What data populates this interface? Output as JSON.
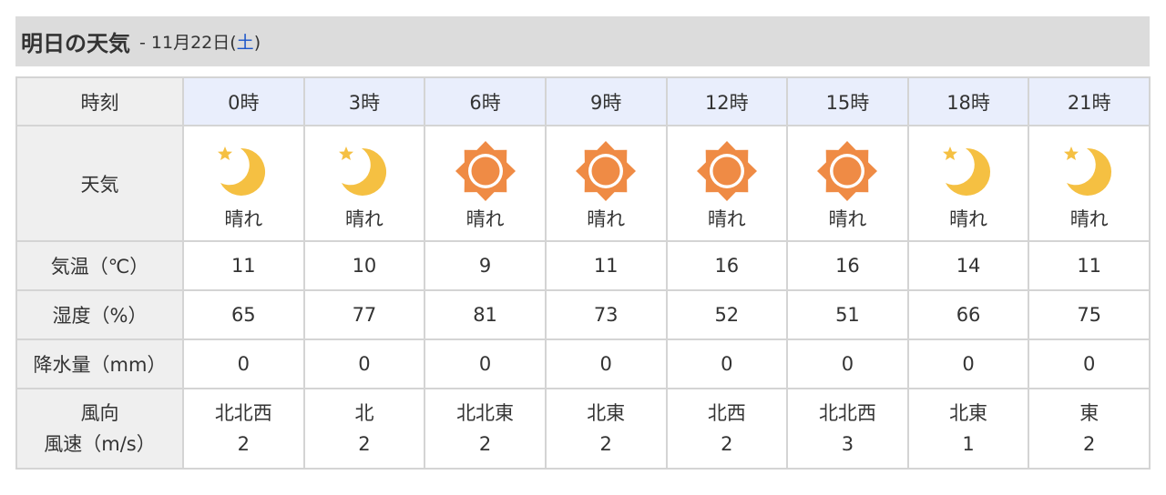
{
  "header": {
    "title": "明日の天気",
    "date_prefix": "- 11月22日(",
    "weekday": "土",
    "date_suffix": ")",
    "weekday_color": "#1a55c9"
  },
  "labels": {
    "time": "時刻",
    "weather": "天気",
    "temp": "気温（℃）",
    "humidity": "湿度（%）",
    "precip": "降水量（mm）",
    "wind_dir": "風向",
    "wind_speed": "風速（m/s）"
  },
  "hours": [
    {
      "time": "0時",
      "icon": "moon-star-icon",
      "weather": "晴れ",
      "temp": "11",
      "humidity": "65",
      "precip": "0",
      "wind_dir": "北北西",
      "wind_speed": "2"
    },
    {
      "time": "3時",
      "icon": "moon-star-icon",
      "weather": "晴れ",
      "temp": "10",
      "humidity": "77",
      "precip": "0",
      "wind_dir": "北",
      "wind_speed": "2"
    },
    {
      "time": "6時",
      "icon": "sun-icon",
      "weather": "晴れ",
      "temp": "9",
      "humidity": "81",
      "precip": "0",
      "wind_dir": "北北東",
      "wind_speed": "2"
    },
    {
      "time": "9時",
      "icon": "sun-icon",
      "weather": "晴れ",
      "temp": "11",
      "humidity": "73",
      "precip": "0",
      "wind_dir": "北東",
      "wind_speed": "2"
    },
    {
      "time": "12時",
      "icon": "sun-icon",
      "weather": "晴れ",
      "temp": "16",
      "humidity": "52",
      "precip": "0",
      "wind_dir": "北西",
      "wind_speed": "2"
    },
    {
      "time": "15時",
      "icon": "sun-icon",
      "weather": "晴れ",
      "temp": "16",
      "humidity": "51",
      "precip": "0",
      "wind_dir": "北北西",
      "wind_speed": "3"
    },
    {
      "time": "18時",
      "icon": "moon-star-icon",
      "weather": "晴れ",
      "temp": "14",
      "humidity": "66",
      "precip": "0",
      "wind_dir": "北東",
      "wind_speed": "1"
    },
    {
      "time": "21時",
      "icon": "moon-star-icon",
      "weather": "晴れ",
      "temp": "11",
      "humidity": "75",
      "precip": "0",
      "wind_dir": "東",
      "wind_speed": "2"
    }
  ],
  "colors": {
    "moon": "#f5c042",
    "sun": "#ef8b45",
    "header_bg": "#dcdcdc",
    "time_bg": "#e9eefc"
  }
}
